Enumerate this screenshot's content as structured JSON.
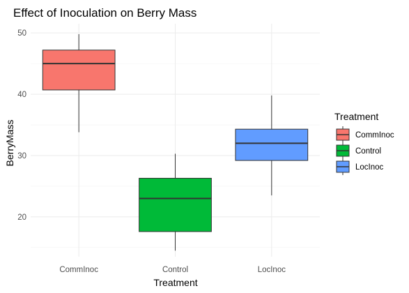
{
  "chart_data": {
    "type": "boxplot",
    "title": "Effect of Inoculation on Berry Mass",
    "xlabel": "Treatment",
    "ylabel": "BerryMass",
    "ylim": [
      13.5,
      51.5
    ],
    "yticks": [
      20,
      30,
      40,
      50
    ],
    "grid": true,
    "legend": {
      "title": "Treatment",
      "placement": "right"
    },
    "categories": [
      "CommInoc",
      "Control",
      "LocInoc"
    ],
    "series": [
      {
        "name": "CommInoc",
        "color": "#F8766D",
        "min": 33.8,
        "q1": 40.7,
        "median": 45.0,
        "q3": 47.2,
        "max": 49.8
      },
      {
        "name": "Control",
        "color": "#00BA38",
        "min": 14.5,
        "q1": 17.6,
        "median": 23.0,
        "q3": 26.3,
        "max": 30.3
      },
      {
        "name": "LocInoc",
        "color": "#619CFF",
        "min": 23.5,
        "q1": 29.2,
        "median": 32.0,
        "q3": 34.3,
        "max": 39.8
      }
    ]
  }
}
